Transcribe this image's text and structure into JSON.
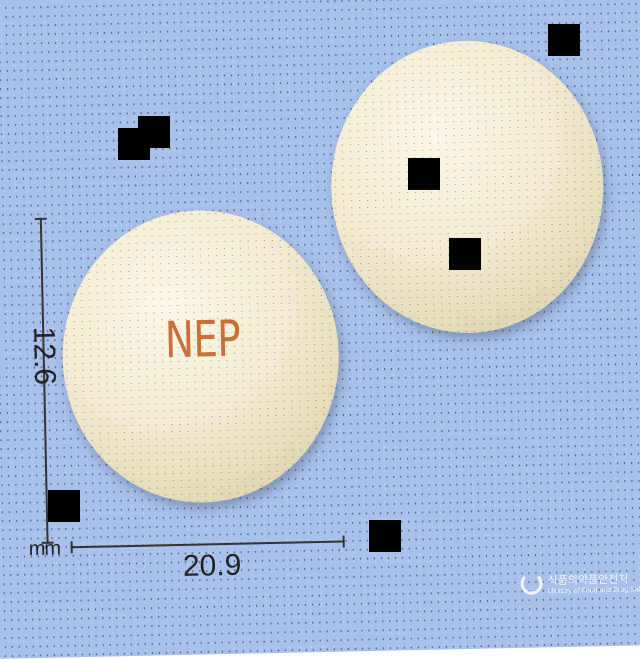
{
  "image": {
    "subject": "two round cream tablets on a blue background",
    "imprint": "NEP",
    "measurements": {
      "height_label": "12.6",
      "width_label": "20.9",
      "unit": "mm"
    },
    "logo": {
      "line1": "식품의약품안전처",
      "line2": "Ministry of Food and Drug Safety"
    },
    "colors": {
      "background": "#a7c1ea",
      "tablet": "#f3ecd2",
      "imprint": "#c96f3a"
    }
  }
}
